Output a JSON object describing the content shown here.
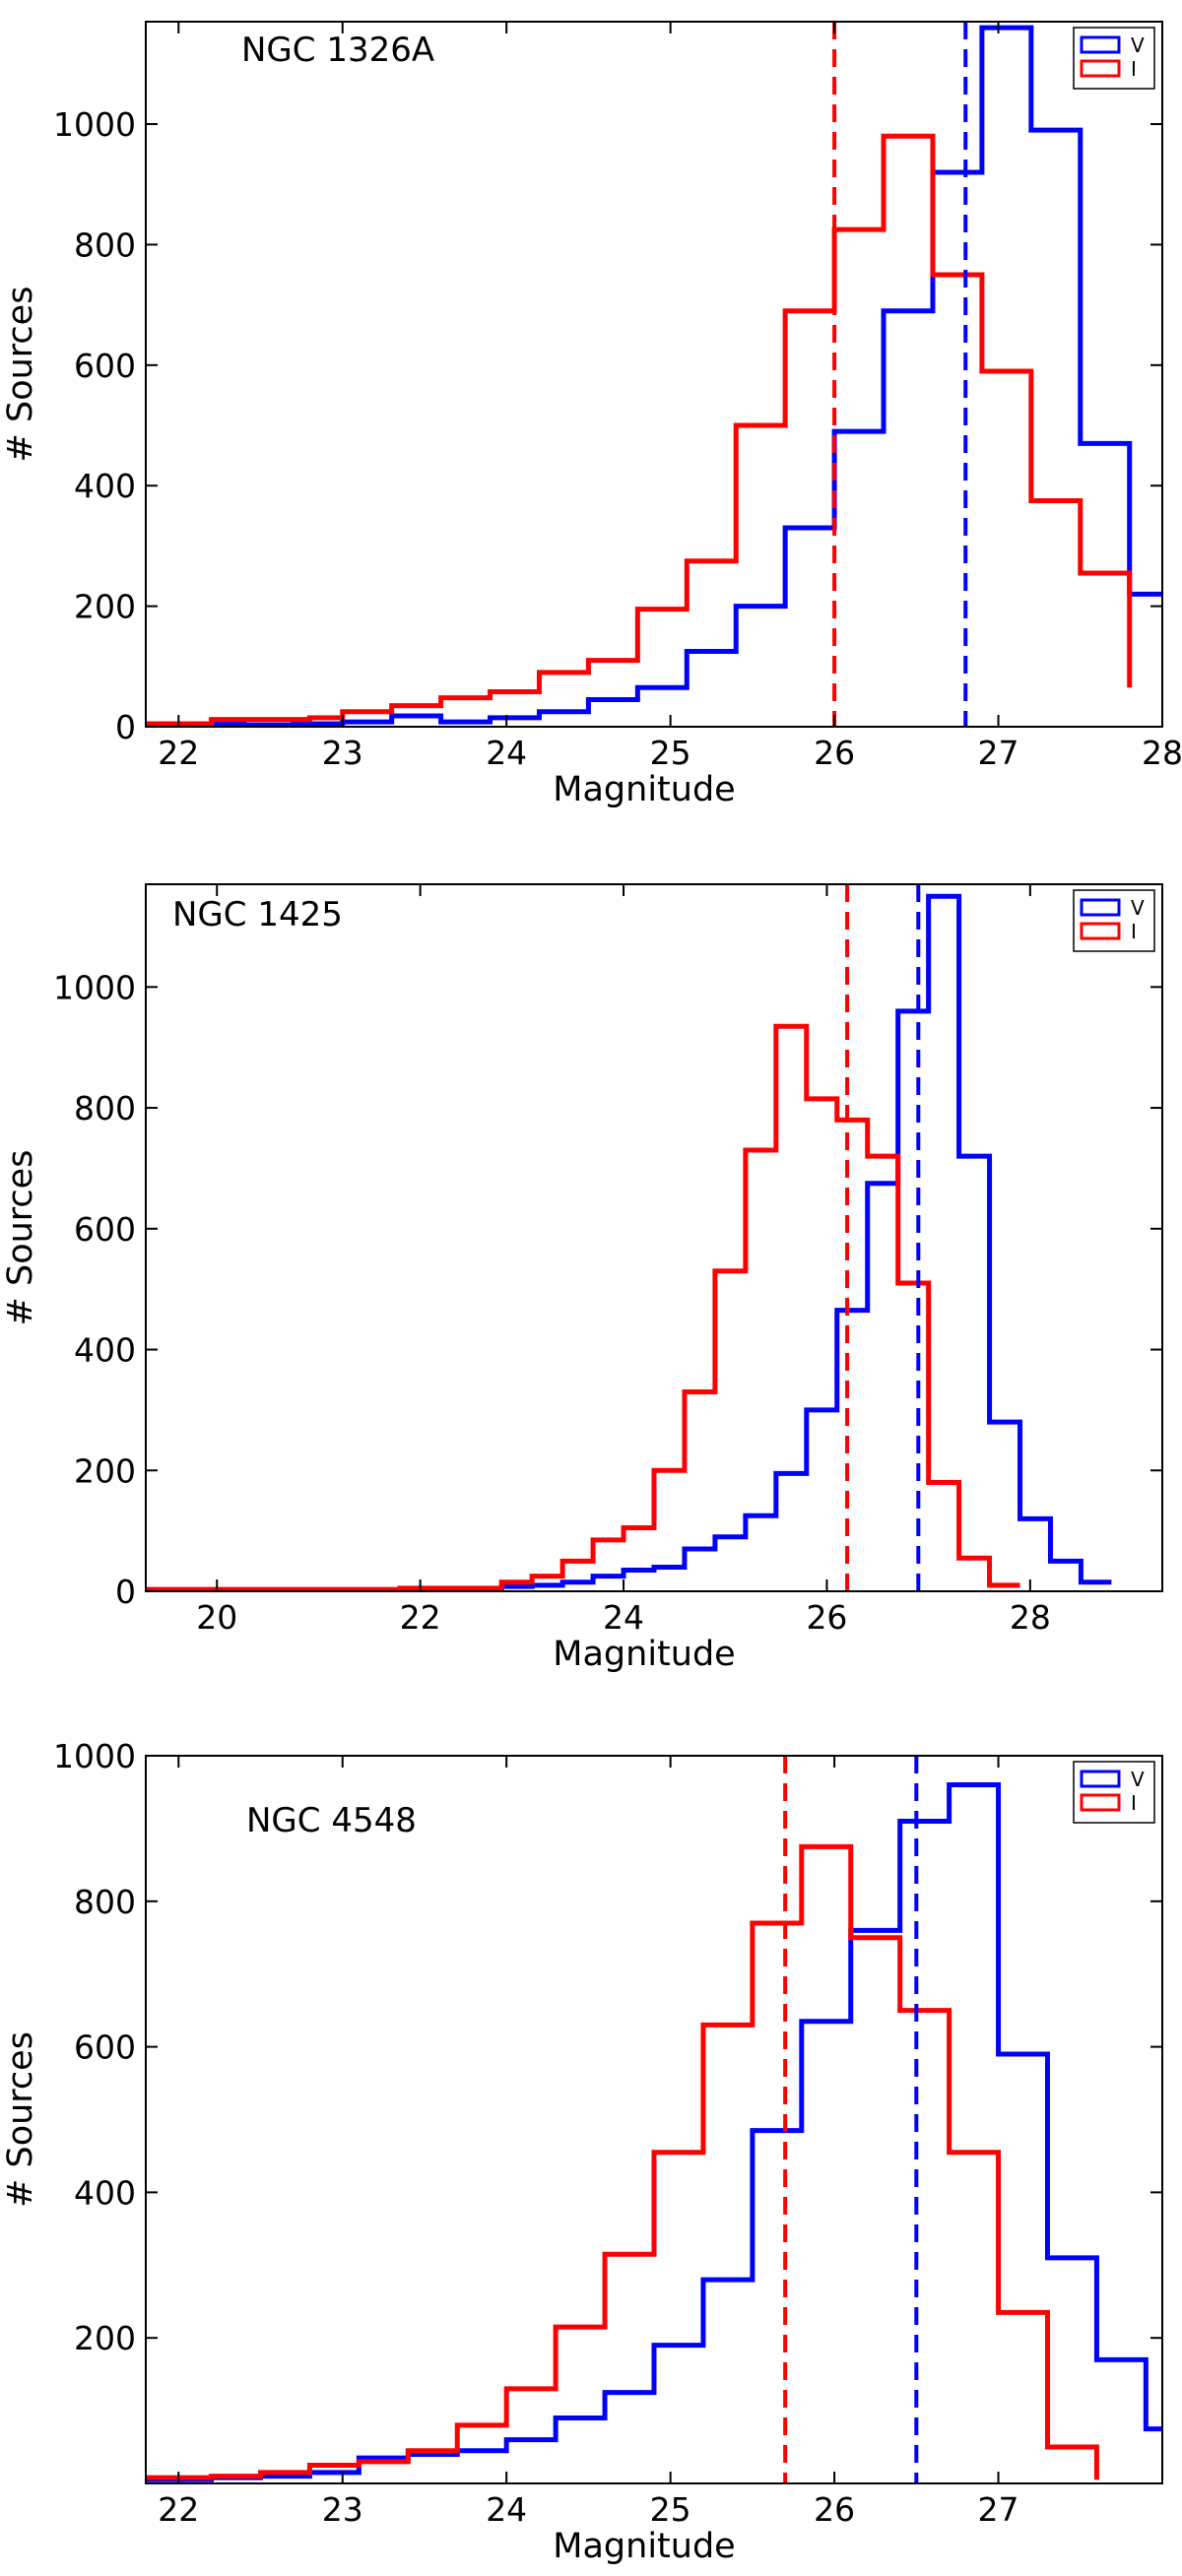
{
  "chart_data": [
    {
      "type": "histogram",
      "title": "NGC 1326A",
      "xlabel": "Magnitude",
      "ylabel": "# Sources",
      "xlim": [
        21.8,
        28.0
      ],
      "ylim": [
        0,
        1170
      ],
      "xticks": [
        22,
        23,
        24,
        25,
        26,
        27,
        28
      ],
      "yticks": [
        0,
        200,
        400,
        600,
        800,
        1000
      ],
      "legend": {
        "position": "top-right",
        "entries": [
          "V",
          "I"
        ]
      },
      "series": [
        {
          "name": "V",
          "color": "#0000ff",
          "edges": [
            21.8,
            22.1,
            22.4,
            22.7,
            23.0,
            23.3,
            23.6,
            23.9,
            24.2,
            24.5,
            24.8,
            25.1,
            25.4,
            25.7,
            26.0,
            26.3,
            26.6,
            26.9,
            27.2,
            27.5,
            27.8,
            28.0
          ],
          "counts": [
            2,
            5,
            3,
            5,
            8,
            18,
            8,
            15,
            25,
            45,
            65,
            125,
            200,
            330,
            490,
            690,
            920,
            1160,
            990,
            470,
            220
          ]
        },
        {
          "name": "I",
          "color": "#ff0000",
          "edges": [
            21.8,
            22.2,
            22.5,
            22.8,
            23.0,
            23.3,
            23.6,
            23.9,
            24.2,
            24.5,
            24.8,
            25.1,
            25.4,
            25.7,
            26.0,
            26.3,
            26.6,
            26.9,
            27.2,
            27.5,
            27.8
          ],
          "counts": [
            5,
            12,
            12,
            15,
            25,
            35,
            48,
            58,
            90,
            110,
            195,
            275,
            500,
            690,
            825,
            980,
            750,
            590,
            375,
            255,
            65
          ]
        }
      ],
      "vlines": [
        {
          "x": 26.0,
          "color": "#ff0000",
          "style": "dashed"
        },
        {
          "x": 26.8,
          "color": "#0000ff",
          "style": "dashed"
        }
      ]
    },
    {
      "type": "histogram",
      "title": "NGC 1425",
      "xlabel": "Magnitude",
      "ylabel": "# Sources",
      "xlim": [
        19.3,
        29.3
      ],
      "ylim": [
        0,
        1170
      ],
      "xticks": [
        20,
        22,
        24,
        26,
        28
      ],
      "yticks": [
        0,
        200,
        400,
        600,
        800,
        1000
      ],
      "legend": {
        "position": "top-right",
        "entries": [
          "V",
          "I"
        ]
      },
      "series": [
        {
          "name": "V",
          "color": "#0000ff",
          "edges": [
            19.3,
            19.8,
            20.3,
            20.8,
            21.3,
            21.8,
            22.3,
            22.8,
            23.1,
            23.4,
            23.7,
            24.0,
            24.3,
            24.6,
            24.9,
            25.2,
            25.5,
            25.8,
            26.1,
            26.4,
            26.7,
            27.0,
            27.3,
            27.6,
            27.9,
            28.2,
            28.5,
            28.8
          ],
          "counts": [
            2,
            2,
            2,
            2,
            2,
            3,
            3,
            8,
            10,
            15,
            25,
            35,
            40,
            70,
            90,
            125,
            195,
            300,
            465,
            675,
            960,
            1150,
            720,
            280,
            120,
            50,
            15
          ]
        },
        {
          "name": "I",
          "color": "#ff0000",
          "edges": [
            19.3,
            19.8,
            20.3,
            20.8,
            21.3,
            21.8,
            22.3,
            22.8,
            23.1,
            23.4,
            23.7,
            24.0,
            24.3,
            24.6,
            24.9,
            25.2,
            25.5,
            25.8,
            26.1,
            26.4,
            26.7,
            27.0,
            27.3,
            27.6,
            27.9
          ],
          "counts": [
            3,
            3,
            3,
            3,
            3,
            5,
            5,
            15,
            25,
            50,
            85,
            105,
            200,
            330,
            530,
            730,
            935,
            815,
            780,
            720,
            510,
            180,
            55,
            10
          ]
        }
      ],
      "vlines": [
        {
          "x": 26.2,
          "color": "#ff0000",
          "style": "dashed"
        },
        {
          "x": 26.9,
          "color": "#0000ff",
          "style": "dashed"
        }
      ]
    },
    {
      "type": "histogram",
      "title": "NGC 4548",
      "xlabel": "Magnitude",
      "ylabel": "# Sources",
      "xlim": [
        21.8,
        28.0
      ],
      "ylim": [
        0,
        1000
      ],
      "xticks": [
        22,
        23,
        24,
        25,
        26,
        27
      ],
      "yticks": [
        200,
        400,
        600,
        800,
        1000
      ],
      "legend": {
        "position": "top-right",
        "entries": [
          "V",
          "I"
        ]
      },
      "series": [
        {
          "name": "V",
          "color": "#0000ff",
          "edges": [
            21.8,
            22.2,
            22.5,
            22.8,
            23.1,
            23.4,
            23.7,
            24.0,
            24.3,
            24.6,
            24.9,
            25.2,
            25.5,
            25.8,
            26.1,
            26.4,
            26.7,
            27.0,
            27.3,
            27.6,
            27.9,
            28.0
          ],
          "counts": [
            5,
            8,
            10,
            15,
            35,
            40,
            45,
            60,
            90,
            125,
            190,
            280,
            485,
            635,
            760,
            910,
            960,
            590,
            310,
            170,
            75
          ]
        },
        {
          "name": "I",
          "color": "#ff0000",
          "edges": [
            21.8,
            22.2,
            22.5,
            22.8,
            23.1,
            23.4,
            23.7,
            24.0,
            24.3,
            24.6,
            24.9,
            25.2,
            25.5,
            25.8,
            26.1,
            26.4,
            26.7,
            27.0,
            27.3,
            27.6
          ],
          "counts": [
            8,
            10,
            15,
            25,
            30,
            45,
            80,
            130,
            215,
            315,
            455,
            630,
            770,
            875,
            750,
            650,
            455,
            235,
            50,
            5
          ]
        }
      ],
      "vlines": [
        {
          "x": 25.7,
          "color": "#ff0000",
          "style": "dashed"
        },
        {
          "x": 26.5,
          "color": "#0000ff",
          "style": "dashed"
        }
      ]
    }
  ]
}
